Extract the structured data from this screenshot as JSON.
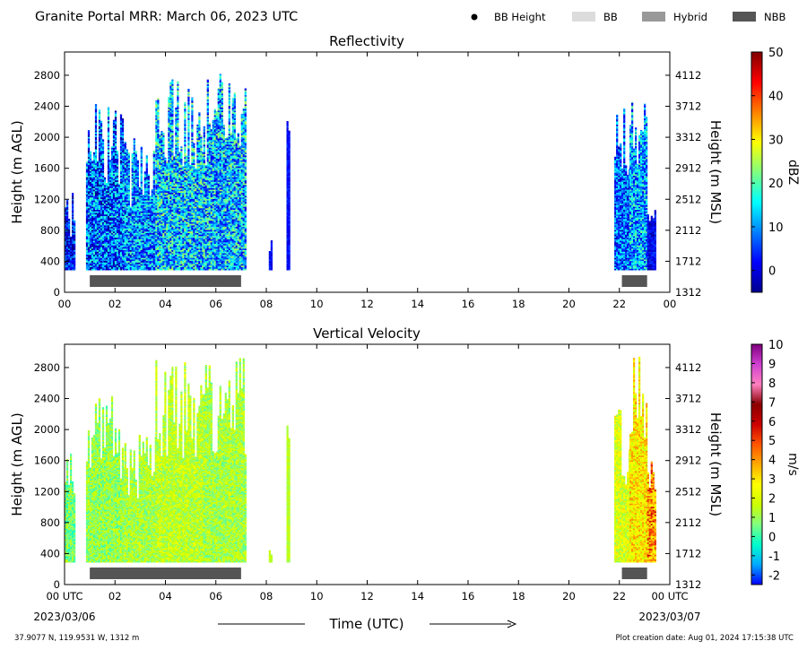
{
  "header": {
    "title": "Granite Portal MRR:  March 06, 2023 UTC",
    "legend": [
      {
        "label": "BB Height",
        "marker": "dot",
        "color": "#000000"
      },
      {
        "label": "BB",
        "marker": "rect",
        "color": "#dcdcdc"
      },
      {
        "label": "Hybrid",
        "marker": "rect",
        "color": "#999999"
      },
      {
        "label": "NBB",
        "marker": "rect",
        "color": "#555555"
      }
    ]
  },
  "footer": {
    "location": "37.9077 N, 119.9531 W, 1312 m",
    "creation": "Plot creation date: Aug 01, 2024 17:15:38 UTC",
    "xlabel": "Time (UTC)",
    "start_date": "2023/03/06",
    "end_date": "2023/03/07",
    "start_tick": "00 UTC",
    "end_tick": "00 UTC"
  },
  "chart_data": [
    {
      "type": "heatmap",
      "title": "Reflectivity",
      "ylabel": "Height (m AGL)",
      "y2label": "Height (m MSL)",
      "xlim": [
        0,
        24
      ],
      "ylim": [
        0,
        3100
      ],
      "xticks": [
        "00",
        "02",
        "04",
        "06",
        "08",
        "10",
        "12",
        "14",
        "16",
        "18",
        "20",
        "22",
        "00"
      ],
      "yticks": [
        0,
        400,
        800,
        1200,
        1600,
        2000,
        2400,
        2800
      ],
      "y2ticks": [
        1312,
        1712,
        2112,
        2512,
        2912,
        3312,
        3712,
        4112
      ],
      "colorbar": {
        "label": "dBZ",
        "min": -5,
        "max": 50,
        "ticks": [
          0,
          10,
          20,
          30,
          40,
          50
        ],
        "colors": [
          "#00008f",
          "#0000ff",
          "#0080ff",
          "#00ffff",
          "#80ff80",
          "#ffff00",
          "#ff8000",
          "#ff0000",
          "#800000"
        ]
      },
      "regions": [
        {
          "x_start": 0.0,
          "x_end": 0.42,
          "top": 1300,
          "mean": 2,
          "spread": 10
        },
        {
          "x_start": 0.85,
          "x_end": 2.3,
          "top": 2450,
          "mean": 7,
          "spread": 13
        },
        {
          "x_start": 2.3,
          "x_end": 3.6,
          "top": 2000,
          "mean": 9,
          "spread": 12
        },
        {
          "x_start": 3.6,
          "x_end": 5.5,
          "top": 2900,
          "mean": 13,
          "spread": 13
        },
        {
          "x_start": 5.5,
          "x_end": 7.2,
          "top": 2950,
          "mean": 12,
          "spread": 13
        },
        {
          "x_start": 8.1,
          "x_end": 8.2,
          "top": 700,
          "mean": 2,
          "spread": 3
        },
        {
          "x_start": 8.8,
          "x_end": 8.9,
          "top": 2250,
          "mean": 2,
          "spread": 3
        },
        {
          "x_start": 21.8,
          "x_end": 22.4,
          "top": 2400,
          "mean": 7,
          "spread": 10
        },
        {
          "x_start": 22.4,
          "x_end": 23.1,
          "top": 2950,
          "mean": 11,
          "spread": 11
        },
        {
          "x_start": 23.1,
          "x_end": 23.4,
          "top": 1300,
          "mean": 1,
          "spread": 5
        }
      ],
      "bands": [
        {
          "type": "NBB",
          "x_start": 1.0,
          "x_end": 7.0
        },
        {
          "type": "NBB",
          "x_start": 22.1,
          "x_end": 23.1
        }
      ]
    },
    {
      "type": "heatmap",
      "title": "Vertical Velocity",
      "ylabel": "Height (m AGL)",
      "y2label": "Height (m MSL)",
      "xlim": [
        0,
        24
      ],
      "ylim": [
        0,
        3100
      ],
      "xticks": [
        "00 UTC",
        "02",
        "04",
        "06",
        "08",
        "10",
        "12",
        "14",
        "16",
        "18",
        "20",
        "22",
        "00 UTC"
      ],
      "yticks": [
        0,
        400,
        800,
        1200,
        1600,
        2000,
        2400,
        2800
      ],
      "y2ticks": [
        1312,
        1712,
        2112,
        2512,
        2912,
        3312,
        3712,
        4112
      ],
      "colorbar": {
        "label": "m/s",
        "min": -2.5,
        "max": 10,
        "ticks": [
          -2,
          -1,
          0,
          1,
          2,
          3,
          4,
          5,
          6,
          7,
          8,
          9,
          10
        ],
        "colors": [
          "#0000ff",
          "#00aaff",
          "#00ffcc",
          "#80ff80",
          "#ccff00",
          "#ffff00",
          "#ffaa00",
          "#ff5500",
          "#cc0000",
          "#8b0000",
          "#ff80c0",
          "#d040d0",
          "#800080"
        ]
      },
      "regions": [
        {
          "x_start": 0.0,
          "x_end": 0.42,
          "top": 1800,
          "mean": 0.6,
          "spread": 1.0
        },
        {
          "x_start": 0.85,
          "x_end": 2.3,
          "top": 2450,
          "mean": 1.0,
          "spread": 1.0
        },
        {
          "x_start": 2.3,
          "x_end": 3.6,
          "top": 2000,
          "mean": 1.2,
          "spread": 1.0
        },
        {
          "x_start": 3.6,
          "x_end": 5.5,
          "top": 2900,
          "mean": 1.5,
          "spread": 1.0
        },
        {
          "x_start": 5.5,
          "x_end": 7.2,
          "top": 2950,
          "mean": 1.2,
          "spread": 1.0
        },
        {
          "x_start": 8.1,
          "x_end": 8.2,
          "top": 600,
          "mean": 1.5,
          "spread": 0.4
        },
        {
          "x_start": 8.8,
          "x_end": 8.9,
          "top": 2300,
          "mean": 1.4,
          "spread": 0.4
        },
        {
          "x_start": 21.8,
          "x_end": 22.4,
          "top": 2300,
          "mean": 2.0,
          "spread": 1.2
        },
        {
          "x_start": 22.4,
          "x_end": 23.1,
          "top": 3000,
          "mean": 2.8,
          "spread": 1.4
        },
        {
          "x_start": 23.1,
          "x_end": 23.4,
          "top": 1700,
          "mean": 4.0,
          "spread": 2.0
        }
      ],
      "bands": [
        {
          "type": "NBB",
          "x_start": 1.0,
          "x_end": 7.0
        },
        {
          "type": "NBB",
          "x_start": 22.1,
          "x_end": 23.1
        }
      ]
    }
  ]
}
